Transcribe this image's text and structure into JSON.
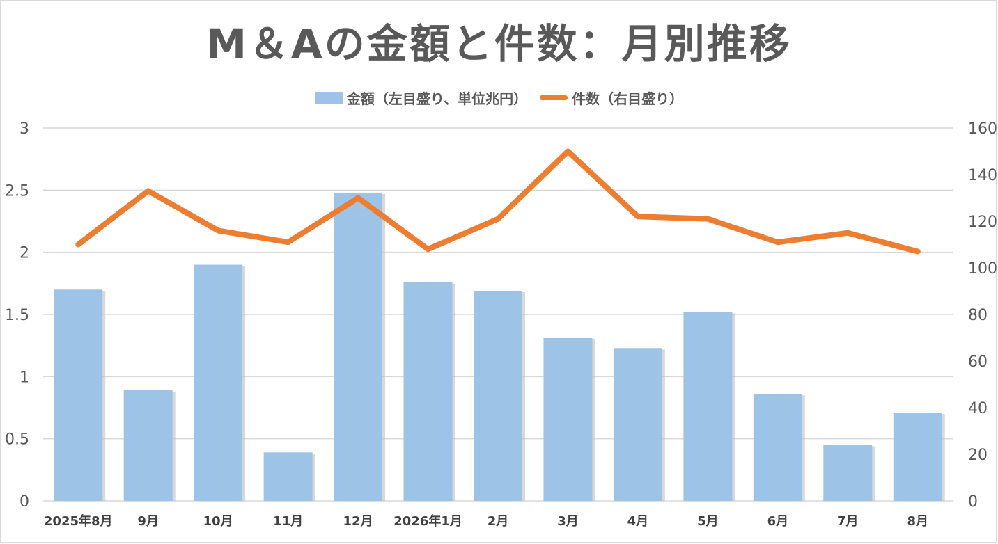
{
  "chart_data": {
    "type": "bar",
    "title": "M＆Aの金額と件数：月別推移",
    "categories": [
      "2025年8月",
      "9月",
      "10月",
      "11月",
      "12月",
      "2026年1月",
      "2月",
      "3月",
      "4月",
      "5月",
      "6月",
      "7月",
      "8月"
    ],
    "series": [
      {
        "name": "金額（左目盛り、単位兆円）",
        "type": "bar",
        "axis": "left",
        "color": "#9dc3e6",
        "values": [
          1.7,
          0.89,
          1.9,
          0.39,
          2.48,
          1.76,
          1.69,
          1.31,
          1.23,
          1.52,
          0.86,
          0.45,
          0.71
        ]
      },
      {
        "name": "件数（右目盛り）",
        "type": "line",
        "axis": "right",
        "color": "#ed7d31",
        "values": [
          110,
          133,
          116,
          111,
          130,
          108,
          121,
          150,
          122,
          121,
          111,
          115,
          107
        ]
      }
    ],
    "y_left": {
      "min": 0,
      "max": 3,
      "ticks": [
        0,
        0.5,
        1,
        1.5,
        2,
        2.5,
        3
      ],
      "tick_labels": [
        "0",
        "0.5",
        "1",
        "1.5",
        "2",
        "2.5",
        "3"
      ]
    },
    "y_right": {
      "min": 0,
      "max": 160,
      "ticks": [
        0,
        20,
        40,
        60,
        80,
        100,
        120,
        140,
        160
      ],
      "tick_labels": [
        "0",
        "20",
        "40",
        "60",
        "80",
        "100",
        "120",
        "140",
        "160"
      ]
    },
    "grid": true,
    "legend_position": "top"
  }
}
